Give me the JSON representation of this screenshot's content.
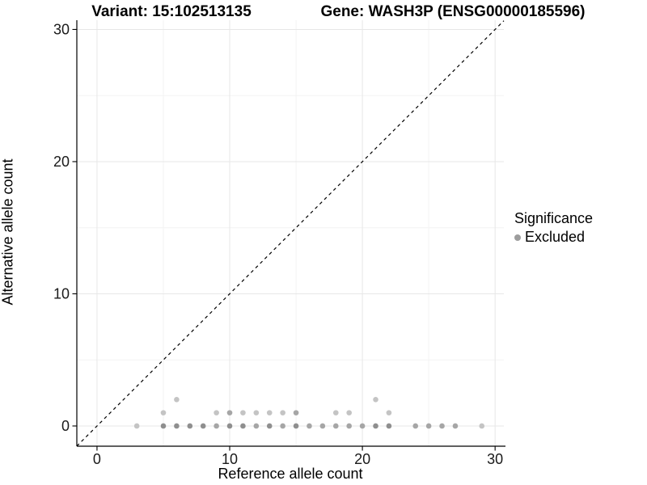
{
  "titles": {
    "variant": "Variant: 15:102513135",
    "gene": "Gene: WASH3P (ENSG00000185596)"
  },
  "axes": {
    "x_label": "Reference allele count",
    "y_label": "Alternative allele count"
  },
  "legend": {
    "title": "Significance",
    "items": [
      {
        "label": "Excluded",
        "color": "#9d9d9d"
      }
    ]
  },
  "chart_data": {
    "type": "scatter",
    "title": "Variant: 15:102513135 / Gene: WASH3P (ENSG00000185596)",
    "xlabel": "Reference allele count",
    "ylabel": "Alternative allele count",
    "xlim": [
      -1.52,
      30.66
    ],
    "ylim": [
      -1.53,
      30.7
    ],
    "x_ticks": [
      0,
      10,
      20,
      30
    ],
    "y_ticks": [
      0,
      10,
      20,
      30
    ],
    "x_minor_ticks": [
      5,
      15,
      25
    ],
    "y_minor_ticks": [
      5,
      15,
      25
    ],
    "grid": true,
    "legend_position": "right",
    "identity_line": {
      "style": "dashed",
      "equation": "y = x",
      "color": "#000000"
    },
    "shade_colors": {
      "d": "#8f8f8f",
      "m": "#a6a6a6",
      "l": "#c4c4c4"
    },
    "series": [
      {
        "name": "Excluded",
        "color": "#9d9d9d",
        "points": [
          [
            3,
            0,
            "l"
          ],
          [
            5,
            0,
            "d"
          ],
          [
            6,
            0,
            "d"
          ],
          [
            7,
            0,
            "d"
          ],
          [
            8,
            0,
            "d"
          ],
          [
            9,
            0,
            "m"
          ],
          [
            10,
            0,
            "d"
          ],
          [
            11,
            0,
            "d"
          ],
          [
            12,
            0,
            "m"
          ],
          [
            13,
            0,
            "d"
          ],
          [
            14,
            0,
            "m"
          ],
          [
            15,
            0,
            "d"
          ],
          [
            16,
            0,
            "m"
          ],
          [
            17,
            0,
            "m"
          ],
          [
            18,
            0,
            "m"
          ],
          [
            19,
            0,
            "m"
          ],
          [
            20,
            0,
            "m"
          ],
          [
            21,
            0,
            "d"
          ],
          [
            22,
            0,
            "d"
          ],
          [
            24,
            0,
            "m"
          ],
          [
            25,
            0,
            "m"
          ],
          [
            26,
            0,
            "m"
          ],
          [
            27,
            0,
            "m"
          ],
          [
            29,
            0,
            "l"
          ],
          [
            5,
            1,
            "l"
          ],
          [
            9,
            1,
            "l"
          ],
          [
            10,
            1,
            "m"
          ],
          [
            11,
            1,
            "l"
          ],
          [
            12,
            1,
            "l"
          ],
          [
            13,
            1,
            "l"
          ],
          [
            14,
            1,
            "l"
          ],
          [
            15,
            1,
            "m"
          ],
          [
            18,
            1,
            "l"
          ],
          [
            19,
            1,
            "l"
          ],
          [
            22,
            1,
            "l"
          ],
          [
            6,
            2,
            "l"
          ],
          [
            21,
            2,
            "l"
          ]
        ]
      }
    ],
    "style": {
      "grid_major_color": "#e7e7e7",
      "grid_minor_color": "#f3f3f3",
      "axis_line_color": "#000000",
      "tick_label_color": "#1a1a1a",
      "point_radius": 3.3
    }
  }
}
